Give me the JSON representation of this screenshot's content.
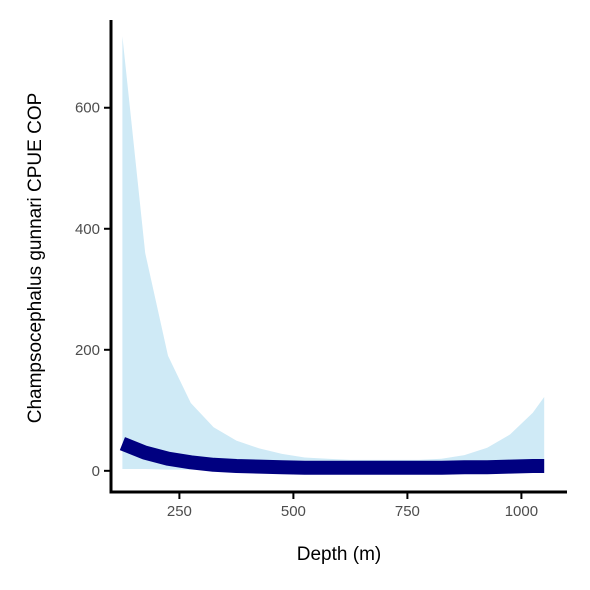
{
  "chart_data": {
    "type": "area",
    "xlabel": "Depth (m)",
    "ylabel": "Champsocephalus gunnari  CPUE COP",
    "xlim": [
      100,
      1100
    ],
    "ylim": [
      -35,
      745
    ],
    "x_ticks": [
      250,
      500,
      750,
      1000
    ],
    "y_ticks": [
      0,
      200,
      400,
      600
    ],
    "grid": false,
    "colors": {
      "band": "#cfeaf6",
      "line": "#000080",
      "axis": "#000000"
    },
    "x": [
      125,
      175,
      225,
      275,
      325,
      375,
      425,
      475,
      525,
      575,
      625,
      675,
      725,
      775,
      825,
      875,
      925,
      975,
      1025,
      1050
    ],
    "series": [
      {
        "values": [
          45,
          30,
          20,
          14,
          10,
          8,
          7,
          6,
          5,
          5,
          5,
          5,
          5,
          5,
          5,
          6,
          6,
          7,
          8,
          8
        ],
        "lower": [
          3,
          3,
          2,
          2,
          2,
          1,
          1,
          1,
          1,
          1,
          1,
          1,
          1,
          1,
          1,
          1,
          1,
          1,
          1,
          1
        ],
        "upper": [
          718,
          360,
          190,
          112,
          72,
          50,
          37,
          28,
          22,
          20,
          18,
          18,
          18,
          18,
          20,
          26,
          38,
          60,
          96,
          122
        ]
      }
    ]
  }
}
